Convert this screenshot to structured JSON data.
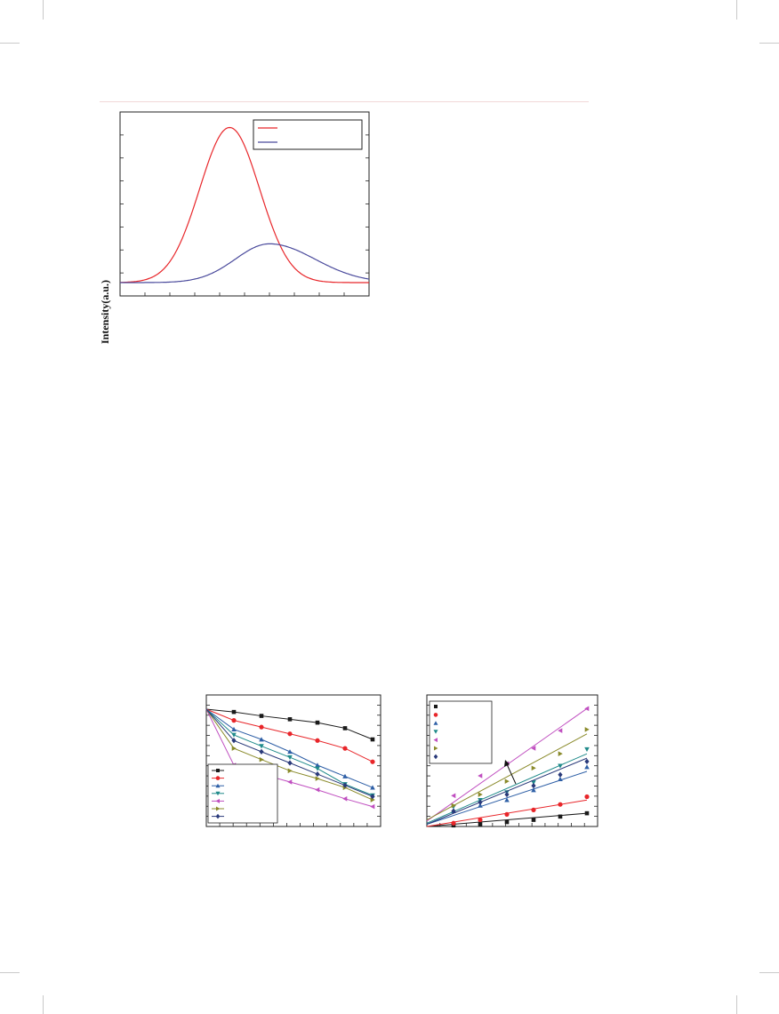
{
  "chart_data": [
    {
      "type": "line",
      "title": "",
      "xlabel": "",
      "ylabel": "Intensity(a.u.)",
      "xlim": [
        0,
        5
      ],
      "ylim": [
        0,
        1.1
      ],
      "x_ticks": 10,
      "y_ticks": 8,
      "legend": "top-right",
      "series": [
        {
          "color": "#e8262a",
          "shape": "gaussian",
          "center": 2.2,
          "width": 0.6,
          "amplitude": 1.0
        },
        {
          "color": "#4a4a9c",
          "shape": "gaussian-asym",
          "center": 3.0,
          "width_left": 0.75,
          "width_right": 1.0,
          "amplitude": 0.25
        }
      ]
    },
    {
      "type": "line",
      "title": "",
      "xlabel": "",
      "ylabel": "",
      "xlim": [
        0,
        6.5
      ],
      "ylim": [
        0,
        1.0
      ],
      "x_ticks": 13,
      "y_ticks": 13,
      "legend": "bottom-left",
      "x": [
        0,
        1,
        2,
        3,
        4,
        5,
        6
      ],
      "series": [
        {
          "color": "#1a1a1a",
          "marker": "square",
          "values": [
            1.0,
            0.975,
            0.94,
            0.91,
            0.88,
            0.83,
            0.73
          ]
        },
        {
          "color": "#e8262a",
          "marker": "circle",
          "values": [
            1.0,
            0.9,
            0.84,
            0.78,
            0.72,
            0.65,
            0.53
          ]
        },
        {
          "color": "#2e5fa6",
          "marker": "triangle-up",
          "values": [
            1.0,
            0.82,
            0.73,
            0.62,
            0.5,
            0.4,
            0.3
          ]
        },
        {
          "color": "#1f8a8a",
          "marker": "triangle-down",
          "values": [
            1.0,
            0.77,
            0.67,
            0.57,
            0.47,
            0.33,
            0.23
          ]
        },
        {
          "color": "#c04fc0",
          "marker": "triangle-left",
          "values": [
            1.0,
            0.5,
            0.42,
            0.35,
            0.28,
            0.2,
            0.13
          ]
        },
        {
          "color": "#8a8a2a",
          "marker": "triangle-right",
          "values": [
            1.0,
            0.65,
            0.55,
            0.45,
            0.38,
            0.3,
            0.19
          ]
        },
        {
          "color": "#2a3a7a",
          "marker": "diamond",
          "values": [
            1.0,
            0.72,
            0.62,
            0.52,
            0.42,
            0.32,
            0.22
          ]
        }
      ]
    },
    {
      "type": "scatter",
      "title": "",
      "xlabel": "",
      "ylabel": "",
      "xlim": [
        0,
        6.5
      ],
      "ylim": [
        0,
        1.1
      ],
      "x_ticks": 13,
      "y_ticks": 13,
      "legend": "top-left",
      "x": [
        1,
        2,
        3,
        4,
        5,
        6
      ],
      "series": [
        {
          "color": "#1a1a1a",
          "marker": "square",
          "values": [
            0.01,
            0.02,
            0.04,
            0.06,
            0.09,
            0.12
          ],
          "fit": [
            0,
            0.02
          ]
        },
        {
          "color": "#e8262a",
          "marker": "circle",
          "values": [
            0.03,
            0.06,
            0.11,
            0.15,
            0.2,
            0.27
          ],
          "fit": [
            -0.03,
            0.045
          ]
        },
        {
          "color": "#2e5fa6",
          "marker": "triangle-up",
          "values": [
            0.14,
            0.19,
            0.24,
            0.33,
            0.43,
            0.54
          ],
          "fit": [
            0.02,
            0.08
          ]
        },
        {
          "color": "#1f8a8a",
          "marker": "triangle-down",
          "values": [
            0.18,
            0.24,
            0.31,
            0.4,
            0.55,
            0.7
          ],
          "fit": [
            0.03,
            0.105
          ]
        },
        {
          "color": "#c04fc0",
          "marker": "triangle-left",
          "values": [
            0.28,
            0.46,
            0.57,
            0.71,
            0.87,
            1.07
          ],
          "fit": [
            0.05,
            0.17
          ]
        },
        {
          "color": "#8a8a2a",
          "marker": "triangle-right",
          "values": [
            0.19,
            0.29,
            0.41,
            0.53,
            0.66,
            0.88
          ],
          "fit": [
            0.06,
            0.13
          ]
        },
        {
          "color": "#2a3a7a",
          "marker": "diamond",
          "values": [
            0.14,
            0.22,
            0.29,
            0.37,
            0.47,
            0.59
          ],
          "fit": [
            0.02,
            0.1
          ]
        }
      ],
      "annotation": "arrow"
    }
  ]
}
